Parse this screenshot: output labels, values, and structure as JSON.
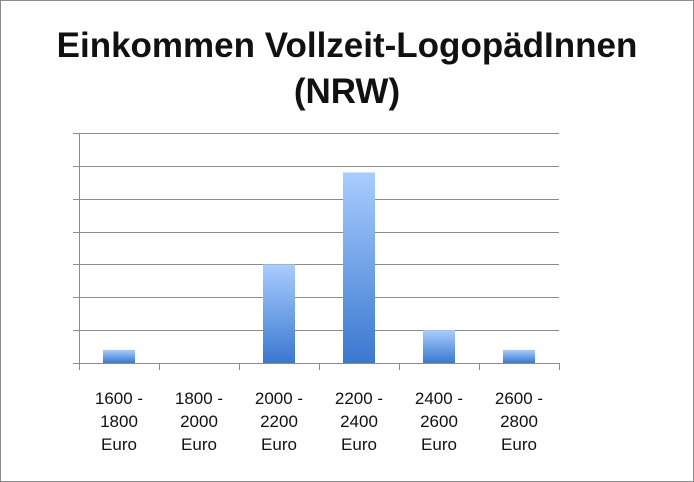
{
  "chart_data": {
    "type": "bar",
    "title": "Einkommen Vollzeit-LogopädInnen\n(NRW)",
    "categories": [
      [
        "1600 -",
        "1800",
        "Euro"
      ],
      [
        "1800 -",
        "2000",
        "Euro"
      ],
      [
        "2000 -",
        "2200",
        "Euro"
      ],
      [
        "2200 -",
        "2400",
        "Euro"
      ],
      [
        "2400 -",
        "2600",
        "Euro"
      ],
      [
        "2600 -",
        "2800",
        "Euro"
      ]
    ],
    "values": [
      0.4,
      0,
      3,
      5.8,
      1,
      0.4
    ],
    "ylim": [
      0,
      7
    ],
    "ytick_step": 1,
    "ytick_labels_shown": false,
    "grid": true,
    "legend": "none",
    "colors": {
      "bar_top": "#a9cdff",
      "bar_bottom": "#3a78cf",
      "grid": "#8c8c8c"
    }
  }
}
